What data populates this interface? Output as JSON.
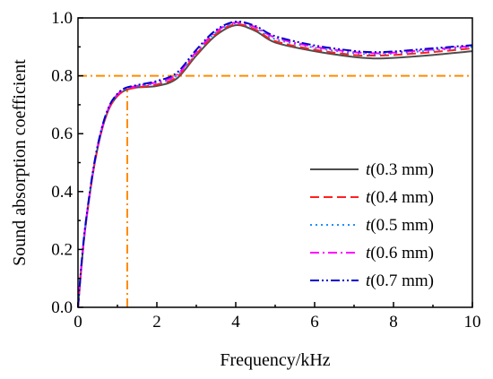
{
  "chart_data": {
    "type": "line",
    "title": "",
    "xlabel": "Frequency/kHz",
    "ylabel": "Sound absorption coefficient",
    "xlim": [
      0,
      10
    ],
    "ylim": [
      0,
      1.0
    ],
    "xticks": [
      "0",
      "2",
      "4",
      "6",
      "8",
      "10"
    ],
    "yticks": [
      "0.0",
      "0.2",
      "0.4",
      "0.6",
      "0.8",
      "1.0"
    ],
    "legend_position": "bottom-right",
    "grid": false,
    "reference_lines": [
      {
        "axis": "y",
        "value": 0.8,
        "color": "#FF8C00",
        "style": "dashdot"
      },
      {
        "axis": "x",
        "value": 1.25,
        "y_max": 0.75,
        "color": "#FF8C00",
        "style": "dashdot"
      }
    ],
    "x": [
      0,
      0.1,
      0.2,
      0.4,
      0.6,
      0.8,
      1.0,
      1.2,
      1.5,
      2.0,
      2.5,
      3.0,
      3.5,
      4.0,
      4.5,
      5.0,
      6.0,
      7.0,
      7.5,
      8.0,
      9.0,
      10.0
    ],
    "series": [
      {
        "legend_label": "(0.3 mm)",
        "color": "#4d4d4d",
        "dash": "solid",
        "values": [
          0.0,
          0.16,
          0.29,
          0.48,
          0.61,
          0.69,
          0.73,
          0.75,
          0.76,
          0.765,
          0.79,
          0.87,
          0.94,
          0.975,
          0.955,
          0.915,
          0.885,
          0.865,
          0.86,
          0.862,
          0.872,
          0.885
        ]
      },
      {
        "legend_label": "(0.4 mm)",
        "color": "#FF2020",
        "dash": "dashed",
        "values": [
          0.0,
          0.16,
          0.29,
          0.48,
          0.61,
          0.69,
          0.73,
          0.75,
          0.76,
          0.77,
          0.795,
          0.875,
          0.945,
          0.978,
          0.96,
          0.92,
          0.89,
          0.872,
          0.87,
          0.872,
          0.882,
          0.895
        ]
      },
      {
        "legend_label": "(0.5 mm)",
        "color": "#1E90FF",
        "dash": "dotted",
        "values": [
          0.0,
          0.165,
          0.295,
          0.485,
          0.615,
          0.695,
          0.735,
          0.755,
          0.765,
          0.775,
          0.8,
          0.88,
          0.95,
          0.982,
          0.965,
          0.927,
          0.897,
          0.878,
          0.875,
          0.877,
          0.888,
          0.9
        ]
      },
      {
        "legend_label": "(0.6 mm)",
        "color": "#FF00FF",
        "dash": "dashdot",
        "values": [
          0.0,
          0.165,
          0.295,
          0.485,
          0.615,
          0.695,
          0.735,
          0.755,
          0.765,
          0.778,
          0.803,
          0.883,
          0.953,
          0.984,
          0.968,
          0.932,
          0.9,
          0.882,
          0.878,
          0.88,
          0.891,
          0.903
        ]
      },
      {
        "legend_label": "(0.7 mm)",
        "color": "#0000CC",
        "dash": "dashdotdot",
        "values": [
          0.0,
          0.168,
          0.298,
          0.488,
          0.618,
          0.698,
          0.738,
          0.758,
          0.768,
          0.782,
          0.81,
          0.89,
          0.958,
          0.987,
          0.972,
          0.937,
          0.905,
          0.886,
          0.882,
          0.884,
          0.895,
          0.906
        ]
      }
    ]
  }
}
